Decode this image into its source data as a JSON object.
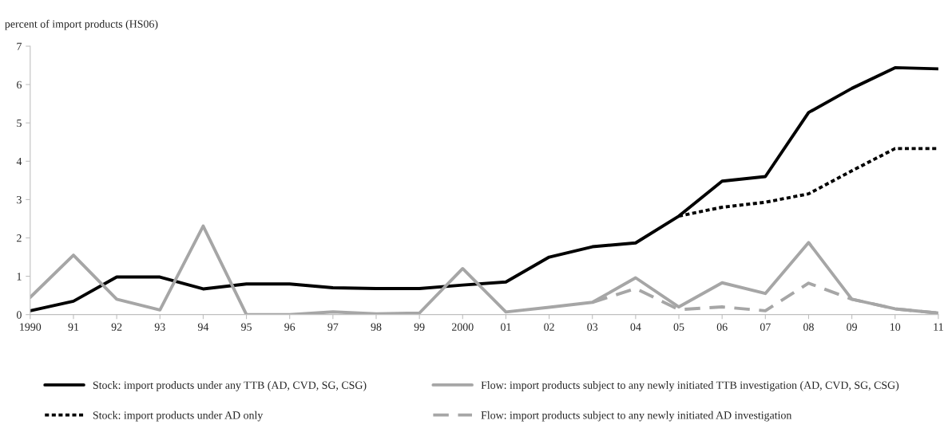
{
  "chart_data": {
    "type": "line",
    "ylabel": "percent of import products (HS06)",
    "categories": [
      "1990",
      "91",
      "92",
      "93",
      "94",
      "95",
      "96",
      "97",
      "98",
      "99",
      "2000",
      "01",
      "02",
      "03",
      "04",
      "05",
      "06",
      "07",
      "08",
      "09",
      "10",
      "11"
    ],
    "ylim": [
      0,
      7
    ],
    "yticks": [
      0,
      1,
      2,
      3,
      4,
      5,
      6,
      7
    ],
    "grid": false,
    "legend": "bottom",
    "marker": "none",
    "series": [
      {
        "name": "Stock: import products under any TTB (AD, CVD, SG, CSG)",
        "color": "#000000",
        "line_style": "solid",
        "values": [
          0.1,
          0.35,
          0.98,
          0.98,
          0.67,
          0.8,
          0.8,
          0.7,
          0.68,
          0.68,
          0.77,
          0.85,
          1.5,
          1.77,
          1.87,
          2.57,
          3.48,
          3.6,
          5.27,
          5.9,
          6.44,
          6.41
        ]
      },
      {
        "name": "Flow: import products subject to any newly initiated TTB investigation (AD, CVD, SG, CSG)",
        "color": "#a6a6a6",
        "line_style": "solid",
        "values": [
          0.45,
          1.55,
          0.4,
          0.12,
          2.31,
          0,
          0,
          0.07,
          0.02,
          0.04,
          1.2,
          0.07,
          0.19,
          0.32,
          0.96,
          0.2,
          0.83,
          0.55,
          1.88,
          0.4,
          0.15,
          0.04
        ]
      },
      {
        "name": "Stock: import products under AD only",
        "color": "#000000",
        "line_style": "dotted",
        "values": [
          null,
          null,
          null,
          null,
          null,
          null,
          null,
          null,
          null,
          null,
          null,
          null,
          null,
          null,
          null,
          2.57,
          2.8,
          2.93,
          3.15,
          3.75,
          4.33,
          4.33
        ]
      },
      {
        "name": "Flow: import products subject to any newly initiated AD investigation",
        "color": "#a6a6a6",
        "line_style": "dashed",
        "values": [
          null,
          null,
          null,
          null,
          null,
          null,
          null,
          null,
          null,
          null,
          null,
          null,
          null,
          0.32,
          0.68,
          0.13,
          0.2,
          0.1,
          0.82,
          0.4,
          0.15,
          0.04
        ]
      }
    ]
  }
}
